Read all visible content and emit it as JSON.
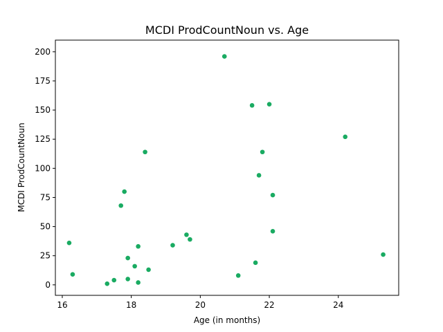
{
  "chart_data": {
    "type": "scatter",
    "title": "MCDI ProdCountNoun vs. Age",
    "xlabel": "Age (in months)",
    "ylabel": "MCDI ProdCountNoun",
    "xlim": [
      15.8,
      25.75
    ],
    "ylim": [
      -9,
      210
    ],
    "xticks": [
      16,
      18,
      20,
      22,
      24
    ],
    "yticks": [
      0,
      25,
      50,
      75,
      100,
      125,
      150,
      175,
      200
    ],
    "grid": false,
    "marker_color": "#1aab62",
    "series": [
      {
        "points": [
          {
            "x": 16.2,
            "y": 36
          },
          {
            "x": 16.3,
            "y": 9
          },
          {
            "x": 17.3,
            "y": 1
          },
          {
            "x": 17.5,
            "y": 4
          },
          {
            "x": 17.7,
            "y": 68
          },
          {
            "x": 17.8,
            "y": 80
          },
          {
            "x": 17.9,
            "y": 23
          },
          {
            "x": 17.9,
            "y": 5
          },
          {
            "x": 18.1,
            "y": 16
          },
          {
            "x": 18.2,
            "y": 33
          },
          {
            "x": 18.2,
            "y": 2
          },
          {
            "x": 18.4,
            "y": 114
          },
          {
            "x": 18.5,
            "y": 13
          },
          {
            "x": 19.2,
            "y": 34
          },
          {
            "x": 19.6,
            "y": 43
          },
          {
            "x": 19.7,
            "y": 39
          },
          {
            "x": 20.7,
            "y": 196
          },
          {
            "x": 21.1,
            "y": 8
          },
          {
            "x": 21.5,
            "y": 154
          },
          {
            "x": 21.6,
            "y": 19
          },
          {
            "x": 21.7,
            "y": 94
          },
          {
            "x": 21.8,
            "y": 114
          },
          {
            "x": 22.0,
            "y": 155
          },
          {
            "x": 22.1,
            "y": 77
          },
          {
            "x": 22.1,
            "y": 46
          },
          {
            "x": 24.2,
            "y": 127
          },
          {
            "x": 25.3,
            "y": 26
          }
        ]
      }
    ]
  }
}
